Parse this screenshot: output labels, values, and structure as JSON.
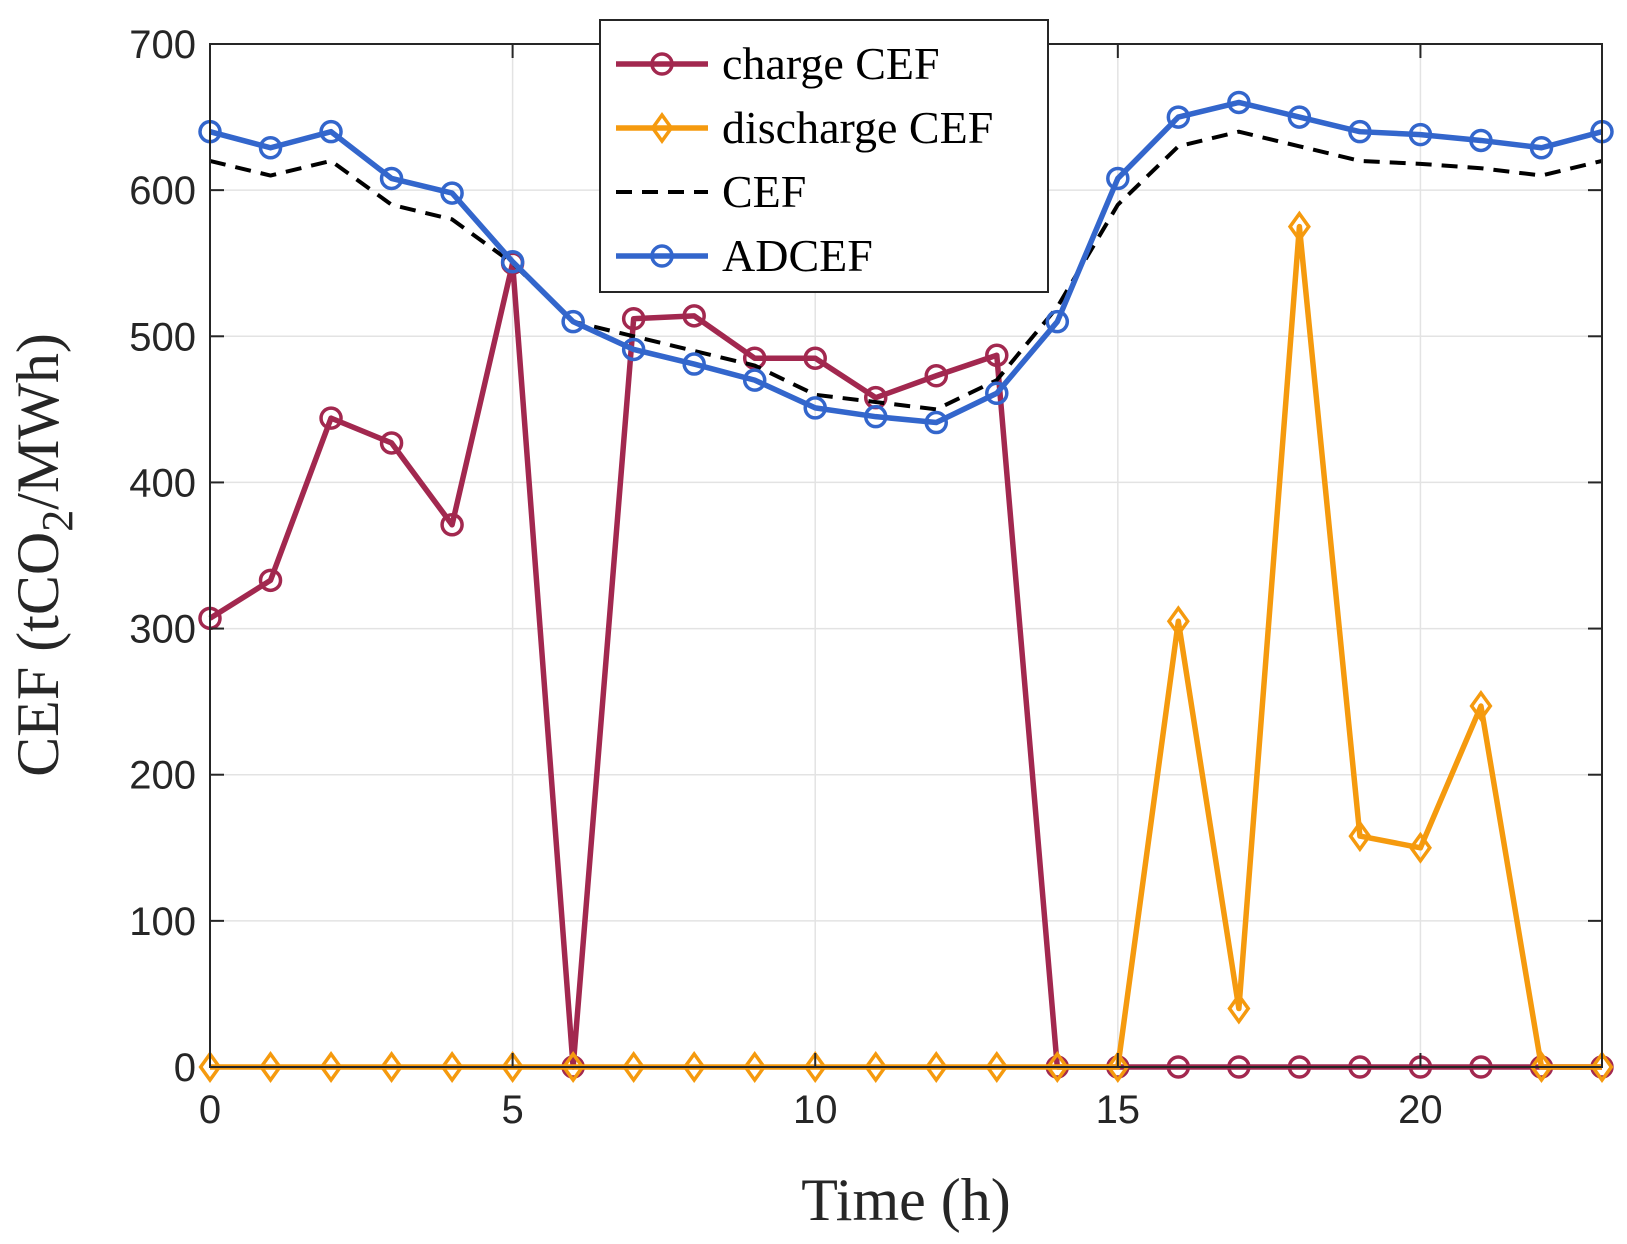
{
  "chart_data": {
    "type": "line",
    "title": "",
    "xlabel": "Time (h)",
    "ylabel": {
      "prefix": "CEF (tCO",
      "subscript": "2",
      "suffix": "/MWh)"
    },
    "xlim": [
      0,
      23
    ],
    "ylim": [
      0,
      700
    ],
    "xticks": [
      0,
      5,
      10,
      15,
      20
    ],
    "yticks": [
      0,
      100,
      200,
      300,
      400,
      500,
      600,
      700
    ],
    "grid": true,
    "legend_position": "top-center",
    "x": [
      0,
      1,
      2,
      3,
      4,
      5,
      6,
      7,
      8,
      9,
      10,
      11,
      12,
      13,
      14,
      15,
      16,
      17,
      18,
      19,
      20,
      21,
      22,
      23
    ],
    "series": [
      {
        "name": "charge CEF",
        "color": "#a2284f",
        "line_style": "solid",
        "marker": "circle",
        "values": [
          307,
          333,
          444,
          427,
          371,
          550,
          0,
          512,
          514,
          485,
          485,
          458,
          473,
          487,
          0,
          0,
          0,
          0,
          0,
          0,
          0,
          0,
          0,
          0
        ]
      },
      {
        "name": "discharge CEF",
        "color": "#f59a0e",
        "line_style": "solid",
        "marker": "diamond",
        "values": [
          0,
          0,
          0,
          0,
          0,
          0,
          0,
          0,
          0,
          0,
          0,
          0,
          0,
          0,
          0,
          0,
          305,
          40,
          575,
          158,
          150,
          247,
          0,
          0
        ]
      },
      {
        "name": "CEF",
        "color": "#000000",
        "line_style": "dashed",
        "marker": "none",
        "values": [
          620,
          610,
          620,
          590,
          580,
          550,
          510,
          500,
          490,
          480,
          460,
          455,
          450,
          470,
          520,
          590,
          630,
          640,
          630,
          620,
          618,
          615,
          610,
          620
        ]
      },
      {
        "name": "ADCEF",
        "color": "#3366cc",
        "line_style": "solid",
        "marker": "circle",
        "values": [
          640,
          629,
          640,
          608,
          598,
          551,
          510,
          491,
          481,
          470,
          451,
          445,
          441,
          461,
          510,
          608,
          650,
          660,
          650,
          640,
          638,
          634,
          629,
          640
        ]
      }
    ]
  }
}
